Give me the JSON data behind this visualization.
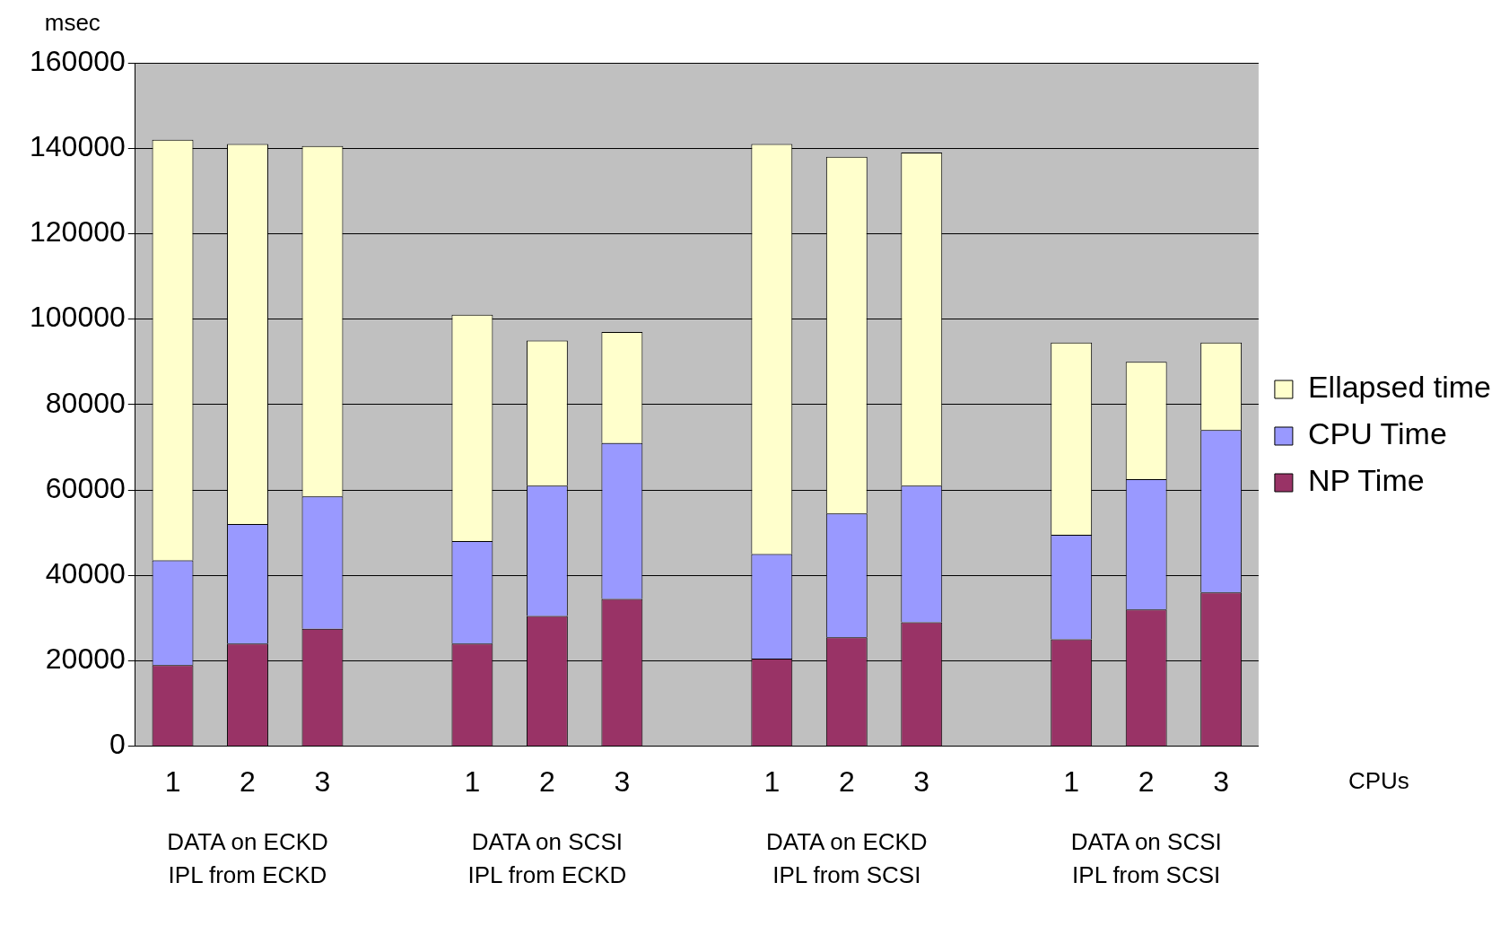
{
  "chart_data": {
    "type": "bar",
    "stacked": true,
    "ylabel": "msec",
    "xlabel": "CPUs",
    "categories": [
      "1",
      "2",
      "3",
      null,
      "1",
      "2",
      "3",
      null,
      "1",
      "2",
      "3",
      null,
      "1",
      "2",
      "3"
    ],
    "series": [
      {
        "name": "NP Time",
        "color": "#993366",
        "values": [
          19000,
          24000,
          27500,
          null,
          24000,
          30500,
          34500,
          null,
          20500,
          25500,
          29000,
          null,
          25000,
          32000,
          36000
        ]
      },
      {
        "name": "CPU Time",
        "color": "#9999ff",
        "values": [
          24500,
          28000,
          31000,
          null,
          24000,
          30500,
          36500,
          null,
          24500,
          29000,
          32000,
          null,
          24500,
          30500,
          38000
        ]
      },
      {
        "name": "Ellapsed time",
        "color": "#ffffcc",
        "values": [
          98500,
          89000,
          82000,
          null,
          53000,
          34000,
          26000,
          null,
          96000,
          83500,
          78000,
          null,
          45000,
          27500,
          20500
        ]
      }
    ],
    "ylim": [
      0,
      160000
    ],
    "yticks": [
      0,
      20000,
      40000,
      60000,
      80000,
      100000,
      120000,
      140000,
      160000
    ],
    "grid": "y",
    "legend": "right",
    "annotations": [
      "DATA on ECKD\nIPL from ECKD",
      "DATA on SCSI\nIPL from ECKD",
      "DATA on ECKD\nIPL from SCSI",
      "DATA on SCSI\nIPL from SCSI"
    ]
  }
}
